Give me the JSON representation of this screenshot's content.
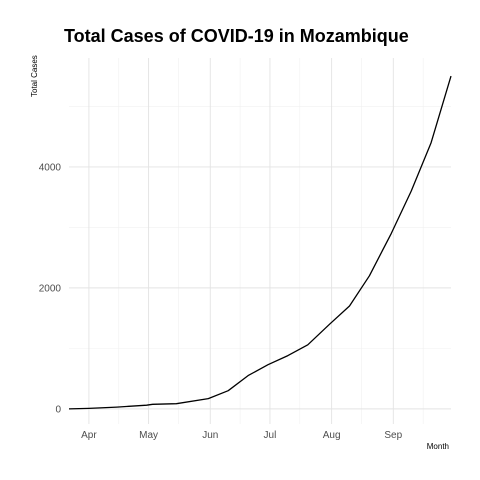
{
  "chart_data": {
    "type": "line",
    "title": "Total Cases of COVID-19 in Mozambique",
    "xlabel": "Month",
    "ylabel": "Total Cases",
    "x_ticks": [
      "Apr",
      "May",
      "Jun",
      "Jul",
      "Aug",
      "Sep"
    ],
    "y_ticks": [
      0,
      2000,
      4000
    ],
    "xlim": [
      "2020-03-22",
      "2020-09-30"
    ],
    "ylim": [
      -250,
      5800
    ],
    "grid": true,
    "series": [
      {
        "x": [
          "2020-03-22",
          "2020-04-01",
          "2020-04-15",
          "2020-04-30",
          "2020-05-03",
          "2020-05-15",
          "2020-05-31",
          "2020-06-10",
          "2020-06-20",
          "2020-06-30",
          "2020-07-10",
          "2020-07-20",
          "2020-07-31",
          "2020-08-10",
          "2020-08-20",
          "2020-08-31",
          "2020-09-10",
          "2020-09-20",
          "2020-09-30"
        ],
        "y": [
          0,
          8,
          30,
          60,
          75,
          85,
          170,
          300,
          550,
          730,
          880,
          1060,
          1400,
          1700,
          2200,
          2900,
          3600,
          4400,
          5500
        ]
      }
    ]
  }
}
